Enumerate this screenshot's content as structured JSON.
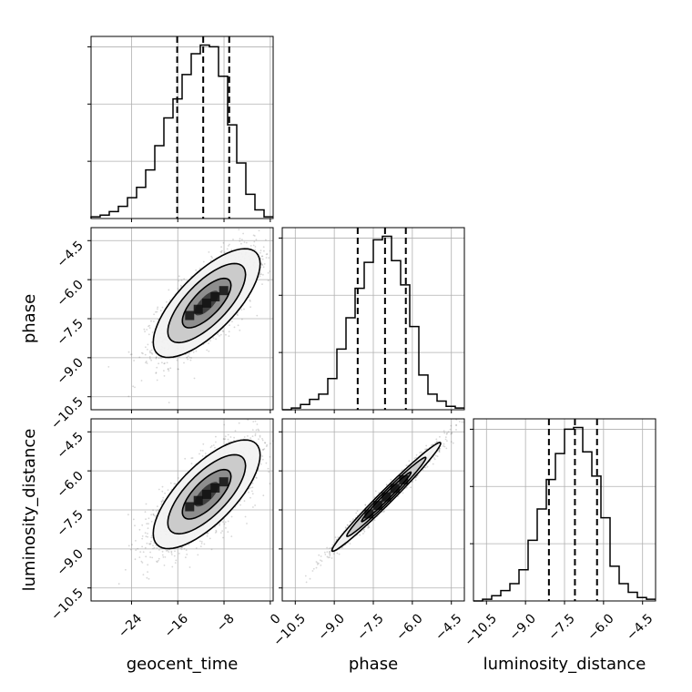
{
  "chart_data": {
    "type": "corner",
    "parameters": [
      "geocent_time",
      "phase",
      "luminosity_distance"
    ],
    "axes": {
      "geocent_time": {
        "label": "geocent_time",
        "range": [
          -31,
          0.5
        ],
        "ticks": [
          -24,
          -16,
          -8,
          0
        ],
        "tick_labels": [
          "−24",
          "−16",
          "−8",
          "0"
        ]
      },
      "phase": {
        "label": "phase",
        "range": [
          -11.0,
          -4.0
        ],
        "ticks": [
          -10.5,
          -9.0,
          -7.5,
          -6.0,
          -4.5
        ],
        "tick_labels": [
          "−10.5",
          "−9.0",
          "−7.5",
          "−6.0",
          "−4.5"
        ]
      },
      "luminosity_distance": {
        "label": "luminosity_distance",
        "range": [
          -11.0,
          -4.0
        ],
        "ticks": [
          -10.5,
          -9.0,
          -7.5,
          -6.0,
          -4.5
        ],
        "tick_labels": [
          "−10.5",
          "−9.0",
          "−7.5",
          "−6.0",
          "−4.5"
        ]
      }
    },
    "histograms": [
      {
        "parameter": "geocent_time",
        "bin_edges": [
          -31,
          -29.425,
          -27.85,
          -26.275,
          -24.7,
          -23.125,
          -21.55,
          -19.975,
          -18.4,
          -16.825,
          -15.25,
          -13.675,
          -12.1,
          -10.525,
          -8.95,
          -7.375,
          -5.8,
          -4.225,
          -2.65,
          -1.075,
          0.5
        ],
        "counts": [
          0.01,
          0.02,
          0.04,
          0.07,
          0.12,
          0.18,
          0.28,
          0.42,
          0.58,
          0.69,
          0.83,
          0.95,
          1.0,
          0.99,
          0.82,
          0.54,
          0.32,
          0.14,
          0.05,
          0.01
        ],
        "quantiles": [
          -16.1,
          -11.6,
          -7.1
        ]
      },
      {
        "parameter": "phase",
        "bin_edges": [
          -11.0,
          -10.65,
          -10.3,
          -9.95,
          -9.6,
          -9.25,
          -8.9,
          -8.55,
          -8.2,
          -7.85,
          -7.5,
          -7.15,
          -6.8,
          -6.45,
          -6.1,
          -5.75,
          -5.4,
          -5.05,
          -4.7,
          -4.35,
          -4.0
        ],
        "counts": [
          0.0,
          0.01,
          0.03,
          0.06,
          0.09,
          0.18,
          0.35,
          0.53,
          0.7,
          0.85,
          0.98,
          1.0,
          0.86,
          0.72,
          0.48,
          0.2,
          0.09,
          0.05,
          0.02,
          0.01
        ],
        "quantiles": [
          -8.1,
          -7.05,
          -6.25
        ]
      },
      {
        "parameter": "luminosity_distance",
        "bin_edges": [
          -11.0,
          -10.65,
          -10.3,
          -9.95,
          -9.6,
          -9.25,
          -8.9,
          -8.55,
          -8.2,
          -7.85,
          -7.5,
          -7.15,
          -6.8,
          -6.45,
          -6.1,
          -5.75,
          -5.4,
          -5.05,
          -4.7,
          -4.35,
          -4.0
        ],
        "counts": [
          0.0,
          0.01,
          0.03,
          0.06,
          0.1,
          0.18,
          0.35,
          0.53,
          0.7,
          0.85,
          0.99,
          1.0,
          0.86,
          0.72,
          0.48,
          0.2,
          0.1,
          0.05,
          0.02,
          0.01
        ],
        "quantiles": [
          -8.1,
          -7.1,
          -6.25
        ]
      }
    ],
    "scatter_panels": [
      {
        "x": "geocent_time",
        "y": "phase",
        "center": [
          -11.0,
          -6.9
        ],
        "sd": [
          4.2,
          0.95
        ],
        "correlation": 0.72,
        "contour_levels": [
          0.5,
          1.0,
          1.6,
          2.2
        ]
      },
      {
        "x": "geocent_time",
        "y": "luminosity_distance",
        "center": [
          -11.0,
          -6.9
        ],
        "sd": [
          4.2,
          0.95
        ],
        "correlation": 0.72,
        "contour_levels": [
          0.5,
          1.0,
          1.6,
          2.2
        ]
      },
      {
        "x": "phase",
        "y": "luminosity_distance",
        "center": [
          -7.0,
          -7.0
        ],
        "sd": [
          0.95,
          0.95
        ],
        "correlation": 0.985,
        "contour_levels": [
          0.5,
          1.0,
          1.6,
          2.2
        ]
      }
    ],
    "grid": true,
    "colors": {
      "line": "#000000",
      "points": "#6e6e6e",
      "grid": "#b0b0b0"
    }
  }
}
